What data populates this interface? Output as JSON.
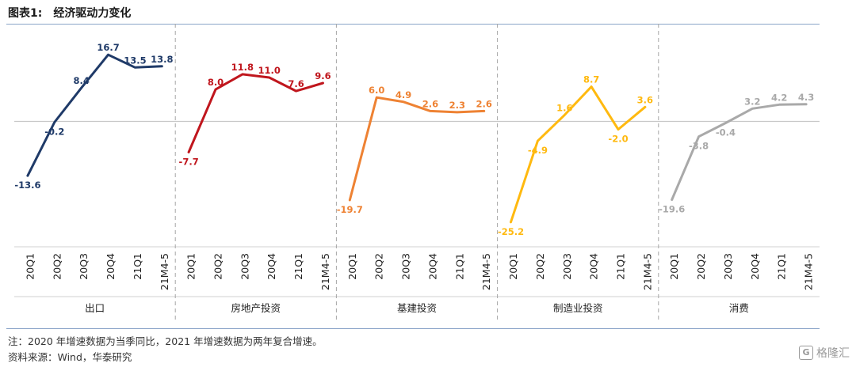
{
  "header": {
    "title_number": "图表1:",
    "title_text": "经济驱动力变化"
  },
  "footer": {
    "note": "注：2020 年增速数据为当季同比，2021 年增速数据为两年复合增速。",
    "source": "资料来源：Wind，华泰研究",
    "watermark": "格隆汇",
    "watermark_glyph": "G"
  },
  "chart_data": {
    "type": "line",
    "ylim": [
      -30,
      20
    ],
    "baseline": 0,
    "panels": [
      {
        "name": "出口",
        "color": "#1f3a68",
        "categories": [
          "20Q1",
          "20Q2",
          "20Q3",
          "20Q4",
          "21Q1",
          "21M4-5"
        ],
        "values": [
          -13.6,
          -0.2,
          8.4,
          16.7,
          13.5,
          13.8
        ],
        "labels": [
          "-13.6",
          "-0.2",
          "8.4",
          "16.7",
          "13.5",
          "13.8"
        ]
      },
      {
        "name": "房地产投资",
        "color": "#c0161d",
        "categories": [
          "20Q1",
          "20Q2",
          "20Q3",
          "20Q4",
          "21Q1",
          "21M4-5"
        ],
        "values": [
          -7.7,
          8.0,
          11.8,
          11.0,
          7.6,
          9.6
        ],
        "labels": [
          "-7.7",
          "8.0",
          "11.8",
          "11.0",
          "7.6",
          "9.6"
        ]
      },
      {
        "name": "基建投资",
        "color": "#ee8233",
        "categories": [
          "20Q1",
          "20Q2",
          "20Q3",
          "20Q4",
          "21Q1",
          "21M4-5"
        ],
        "values": [
          -19.7,
          6.0,
          4.9,
          2.6,
          2.3,
          2.6
        ],
        "labels": [
          "-19.7",
          "6.0",
          "4.9",
          "2.6",
          "2.3",
          "2.6"
        ]
      },
      {
        "name": "制造业投资",
        "color": "#ffb90f",
        "categories": [
          "20Q1",
          "20Q2",
          "20Q3",
          "20Q4",
          "21Q1",
          "21M4-5"
        ],
        "values": [
          -25.2,
          -4.9,
          1.6,
          8.7,
          -2.0,
          3.6
        ],
        "labels": [
          "-25.2",
          "-4.9",
          "1.6",
          "8.7",
          "-2.0",
          "3.6"
        ]
      },
      {
        "name": "消费",
        "color": "#a9a9a9",
        "categories": [
          "20Q1",
          "20Q2",
          "20Q3",
          "20Q4",
          "21Q1",
          "21M4-5"
        ],
        "values": [
          -19.6,
          -3.8,
          -0.4,
          3.2,
          4.2,
          4.3
        ],
        "labels": [
          "-19.6",
          "-3.8",
          "-0.4",
          "3.2",
          "4.2",
          "4.3"
        ]
      }
    ]
  }
}
